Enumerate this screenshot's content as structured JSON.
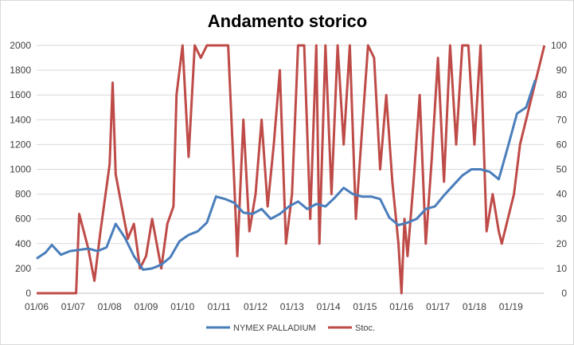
{
  "chart_data": {
    "type": "line",
    "title": "Andamento storico",
    "x_tick_labels": [
      "01/06",
      "01/07",
      "01/08",
      "01/09",
      "01/10",
      "01/11",
      "01/12",
      "01/13",
      "01/14",
      "01/15",
      "01/16",
      "01/17",
      "01/18",
      "01/19"
    ],
    "y_left": {
      "ylim": [
        0,
        2000
      ],
      "ticks": [
        "0",
        "200",
        "400",
        "600",
        "800",
        "1000",
        "1200",
        "1400",
        "1600",
        "1800",
        "2000"
      ]
    },
    "y_right": {
      "ylim": [
        0,
        100
      ],
      "ticks": [
        "0",
        "10",
        "20",
        "30",
        "40",
        "50",
        "60",
        "70",
        "80",
        "90",
        "100"
      ]
    },
    "grid": "horizontal",
    "legend_position": "bottom",
    "series": [
      {
        "name": "NYMEX PALLADIUM",
        "axis": "left",
        "color": "#4a7ebb",
        "x": [
          "2006-01",
          "2006-04",
          "2006-06",
          "2006-09",
          "2006-12",
          "2007-03",
          "2007-06",
          "2007-09",
          "2007-12",
          "2008-03",
          "2008-06",
          "2008-09",
          "2008-12",
          "2009-03",
          "2009-06",
          "2009-09",
          "2009-12",
          "2010-03",
          "2010-06",
          "2010-09",
          "2010-12",
          "2011-03",
          "2011-06",
          "2011-09",
          "2011-12",
          "2012-03",
          "2012-06",
          "2012-09",
          "2012-12",
          "2013-03",
          "2013-06",
          "2013-09",
          "2013-12",
          "2014-03",
          "2014-06",
          "2014-09",
          "2014-12",
          "2015-03",
          "2015-06",
          "2015-09",
          "2015-12",
          "2016-03",
          "2016-06",
          "2016-09",
          "2016-12",
          "2017-03",
          "2017-06",
          "2017-09",
          "2017-12",
          "2018-03",
          "2018-06",
          "2018-09",
          "2018-12",
          "2019-03",
          "2019-06",
          "2019-09"
        ],
        "values": [
          280,
          330,
          390,
          310,
          340,
          350,
          360,
          340,
          370,
          560,
          450,
          300,
          190,
          200,
          230,
          290,
          420,
          470,
          500,
          570,
          780,
          760,
          730,
          650,
          640,
          680,
          600,
          640,
          700,
          740,
          680,
          720,
          700,
          770,
          850,
          800,
          780,
          780,
          760,
          610,
          550,
          570,
          600,
          680,
          700,
          790,
          870,
          950,
          1000,
          1000,
          980,
          920,
          1180,
          1450,
          1500,
          1720
        ]
      },
      {
        "name": "Stoc.",
        "axis": "right",
        "color": "#be4b48",
        "x": [
          "2006-01",
          "2006-06",
          "2006-12",
          "2007-02",
          "2007-03",
          "2007-06",
          "2007-08",
          "2007-10",
          "2008-01",
          "2008-02",
          "2008-03",
          "2008-05",
          "2008-07",
          "2008-09",
          "2008-11",
          "2009-01",
          "2009-03",
          "2009-06",
          "2009-08",
          "2009-10",
          "2009-11",
          "2010-01",
          "2010-03",
          "2010-05",
          "2010-07",
          "2010-09",
          "2011-01",
          "2011-04",
          "2011-06",
          "2011-07",
          "2011-09",
          "2011-11",
          "2012-01",
          "2012-03",
          "2012-05",
          "2012-07",
          "2012-09",
          "2012-11",
          "2013-01",
          "2013-03",
          "2013-05",
          "2013-07",
          "2013-09",
          "2013-10",
          "2013-12",
          "2014-02",
          "2014-04",
          "2014-06",
          "2014-08",
          "2014-10",
          "2014-12",
          "2015-02",
          "2015-04",
          "2015-06",
          "2015-08",
          "2015-10",
          "2015-12",
          "2016-01",
          "2016-02",
          "2016-03",
          "2016-05",
          "2016-07",
          "2016-09",
          "2016-11",
          "2017-01",
          "2017-03",
          "2017-05",
          "2017-07",
          "2017-09",
          "2017-11",
          "2018-01",
          "2018-03",
          "2018-05",
          "2018-07",
          "2018-09",
          "2018-10",
          "2018-12",
          "2019-02",
          "2019-04",
          "2019-12"
        ],
        "values": [
          0,
          0,
          0,
          0,
          32,
          18,
          5,
          25,
          52,
          85,
          48,
          35,
          22,
          28,
          10,
          15,
          30,
          10,
          28,
          35,
          80,
          100,
          55,
          100,
          95,
          100,
          100,
          100,
          45,
          15,
          70,
          25,
          40,
          70,
          35,
          60,
          90,
          20,
          40,
          100,
          100,
          30,
          100,
          20,
          100,
          40,
          100,
          60,
          100,
          30,
          65,
          100,
          95,
          50,
          80,
          45,
          20,
          0,
          30,
          15,
          45,
          80,
          20,
          55,
          95,
          45,
          100,
          60,
          100,
          100,
          60,
          100,
          25,
          40,
          25,
          20,
          30,
          40,
          60,
          100
        ]
      }
    ]
  }
}
